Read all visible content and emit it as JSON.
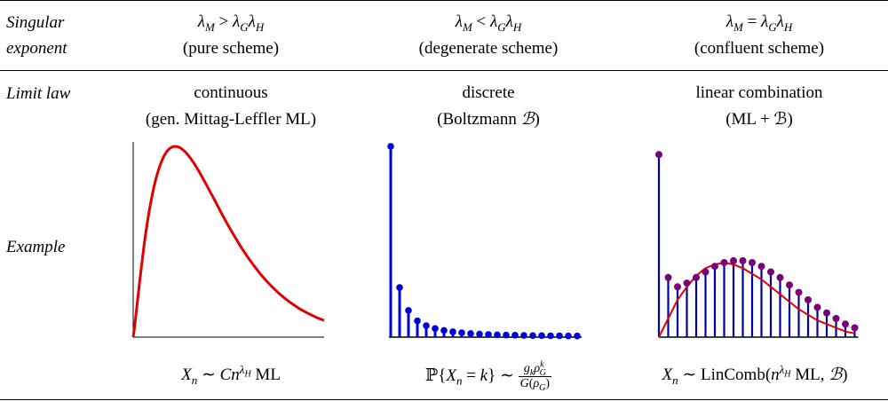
{
  "header": {
    "row_label_line1": "Singular",
    "row_label_line2": "exponent",
    "col1": {
      "relation_rhs": ">",
      "scheme": "(pure scheme)"
    },
    "col2": {
      "relation_rhs": "<",
      "scheme": "(degenerate scheme)"
    },
    "col3": {
      "relation_rhs": "=",
      "scheme": "(confluent scheme)"
    }
  },
  "limit_law": {
    "row_label": "Limit law",
    "col1": {
      "line1": "continuous",
      "line2_prefix": "(gen. Mittag-Leffler ",
      "line2_suffix": ")"
    },
    "col2": {
      "line1": "discrete",
      "line2_prefix": "(Boltzmann ",
      "line2_suffix": ")"
    },
    "col3": {
      "line1": "linear combination",
      "line2": "(ML + ℬ)"
    }
  },
  "example": {
    "row_label": "Example",
    "col1_formula": "Xₙ ~ Cn^λ_H ML",
    "col2_formula": "P{Xₙ = k} ~ g_k ρ_G^k / G(ρ_G)",
    "col3_formula": "Xₙ ~ LinComb(n^λ_H ML, ℬ)"
  },
  "colors": {
    "continuous_curve": "#e00000",
    "discrete_stems": "#0000dd",
    "confluent_stems": "#0000aa",
    "confluent_points": "#7a007a",
    "axis": "#000000"
  },
  "chart_data": [
    {
      "type": "line",
      "description_key": "continuous-density",
      "x": [
        0,
        0.1,
        0.2,
        0.3,
        0.4,
        0.5,
        0.6,
        0.7,
        0.8,
        0.9,
        1.0
      ],
      "values": [
        0,
        0.78,
        0.99,
        0.86,
        0.62,
        0.38,
        0.2,
        0.09,
        0.035,
        0.01,
        0.0
      ]
    },
    {
      "type": "bar",
      "description_key": "discrete-boltzmann",
      "values": [
        1.0,
        0.26,
        0.14,
        0.085,
        0.06,
        0.045,
        0.035,
        0.028,
        0.023,
        0.019,
        0.016,
        0.014,
        0.012,
        0.011,
        0.01,
        0.009,
        0.008,
        0.008,
        0.007,
        0.007,
        0.006,
        0.006
      ]
    },
    {
      "type": "bar",
      "description_key": "confluent-combination",
      "values": [
        0.98,
        0.32,
        0.27,
        0.29,
        0.32,
        0.35,
        0.38,
        0.4,
        0.41,
        0.41,
        0.4,
        0.38,
        0.35,
        0.32,
        0.28,
        0.24,
        0.2,
        0.16,
        0.13,
        0.1,
        0.07,
        0.05
      ],
      "curve": [
        0,
        0.1,
        0.2,
        0.27,
        0.33,
        0.37,
        0.39,
        0.4,
        0.39,
        0.37,
        0.34,
        0.31,
        0.27,
        0.23,
        0.19,
        0.15,
        0.12,
        0.09,
        0.07,
        0.05,
        0.03,
        0.02
      ]
    }
  ]
}
